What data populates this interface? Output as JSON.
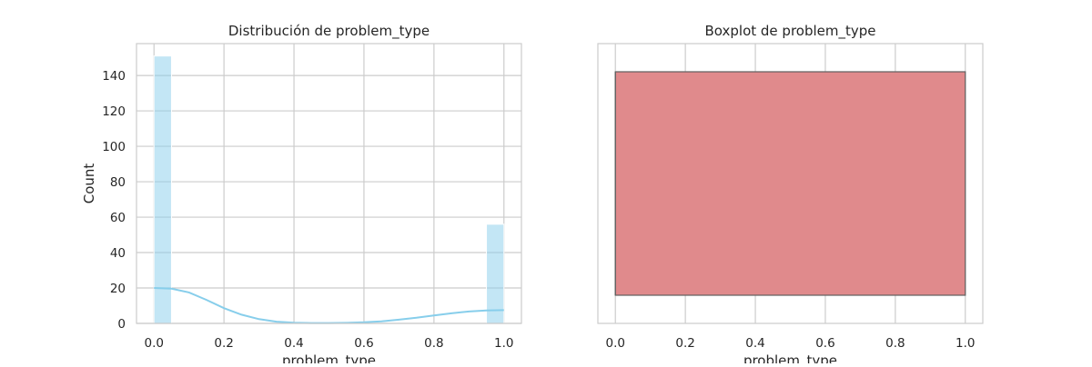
{
  "chart_data": [
    {
      "type": "bar",
      "title": "Distribución de problem_type",
      "xlabel": "problem_type",
      "ylabel": "Count",
      "xlim": [
        -0.05,
        1.05
      ],
      "ylim": [
        0,
        158
      ],
      "xticks": [
        0.0,
        0.2,
        0.4,
        0.6,
        0.8,
        1.0
      ],
      "xtick_labels": [
        "0.0",
        "0.2",
        "0.4",
        "0.6",
        "0.8",
        "1.0"
      ],
      "yticks": [
        0,
        20,
        40,
        60,
        80,
        100,
        120,
        140
      ],
      "ytick_labels": [
        "0",
        "20",
        "40",
        "60",
        "80",
        "100",
        "120",
        "140"
      ],
      "bins": [
        {
          "x0": 0.0,
          "x1": 0.05,
          "count": 151
        },
        {
          "x0": 0.05,
          "x1": 0.1,
          "count": 0
        },
        {
          "x0": 0.1,
          "x1": 0.15,
          "count": 0
        },
        {
          "x0": 0.15,
          "x1": 0.2,
          "count": 0
        },
        {
          "x0": 0.2,
          "x1": 0.25,
          "count": 0
        },
        {
          "x0": 0.25,
          "x1": 0.3,
          "count": 0
        },
        {
          "x0": 0.3,
          "x1": 0.35,
          "count": 0
        },
        {
          "x0": 0.35,
          "x1": 0.4,
          "count": 0
        },
        {
          "x0": 0.4,
          "x1": 0.45,
          "count": 0
        },
        {
          "x0": 0.45,
          "x1": 0.5,
          "count": 0
        },
        {
          "x0": 0.5,
          "x1": 0.55,
          "count": 0
        },
        {
          "x0": 0.55,
          "x1": 0.6,
          "count": 0
        },
        {
          "x0": 0.6,
          "x1": 0.65,
          "count": 0
        },
        {
          "x0": 0.65,
          "x1": 0.7,
          "count": 0
        },
        {
          "x0": 0.7,
          "x1": 0.75,
          "count": 0
        },
        {
          "x0": 0.75,
          "x1": 0.8,
          "count": 0
        },
        {
          "x0": 0.8,
          "x1": 0.85,
          "count": 0
        },
        {
          "x0": 0.85,
          "x1": 0.9,
          "count": 0
        },
        {
          "x0": 0.9,
          "x1": 0.95,
          "count": 0
        },
        {
          "x0": 0.95,
          "x1": 1.0,
          "count": 56
        }
      ],
      "kde": {
        "x": [
          0.0,
          0.05,
          0.1,
          0.15,
          0.2,
          0.25,
          0.3,
          0.35,
          0.4,
          0.45,
          0.5,
          0.55,
          0.6,
          0.65,
          0.7,
          0.75,
          0.8,
          0.85,
          0.9,
          0.95,
          1.0
        ],
        "y": [
          20,
          19.6,
          17.5,
          13.3,
          8.6,
          4.9,
          2.4,
          1.0,
          0.4,
          0.2,
          0.2,
          0.3,
          0.6,
          1.2,
          2.1,
          3.2,
          4.5,
          5.7,
          6.7,
          7.3,
          7.5
        ]
      },
      "colors": {
        "bar": "#87ceeb",
        "line": "#87ceeb"
      },
      "grid": true
    },
    {
      "type": "box",
      "title": "Boxplot de problem_type",
      "xlabel": "problem_type",
      "xlim": [
        -0.05,
        1.05
      ],
      "xticks": [
        0.0,
        0.2,
        0.4,
        0.6,
        0.8,
        1.0
      ],
      "xtick_labels": [
        "0.0",
        "0.2",
        "0.4",
        "0.6",
        "0.8",
        "1.0"
      ],
      "box": {
        "whislo": 0.0,
        "q1": 0.0,
        "median": 0.0,
        "q3": 1.0,
        "whishi": 1.0
      },
      "colors": {
        "box": "#e08a8c",
        "edge": "#5f5f5f"
      },
      "grid": true
    }
  ]
}
